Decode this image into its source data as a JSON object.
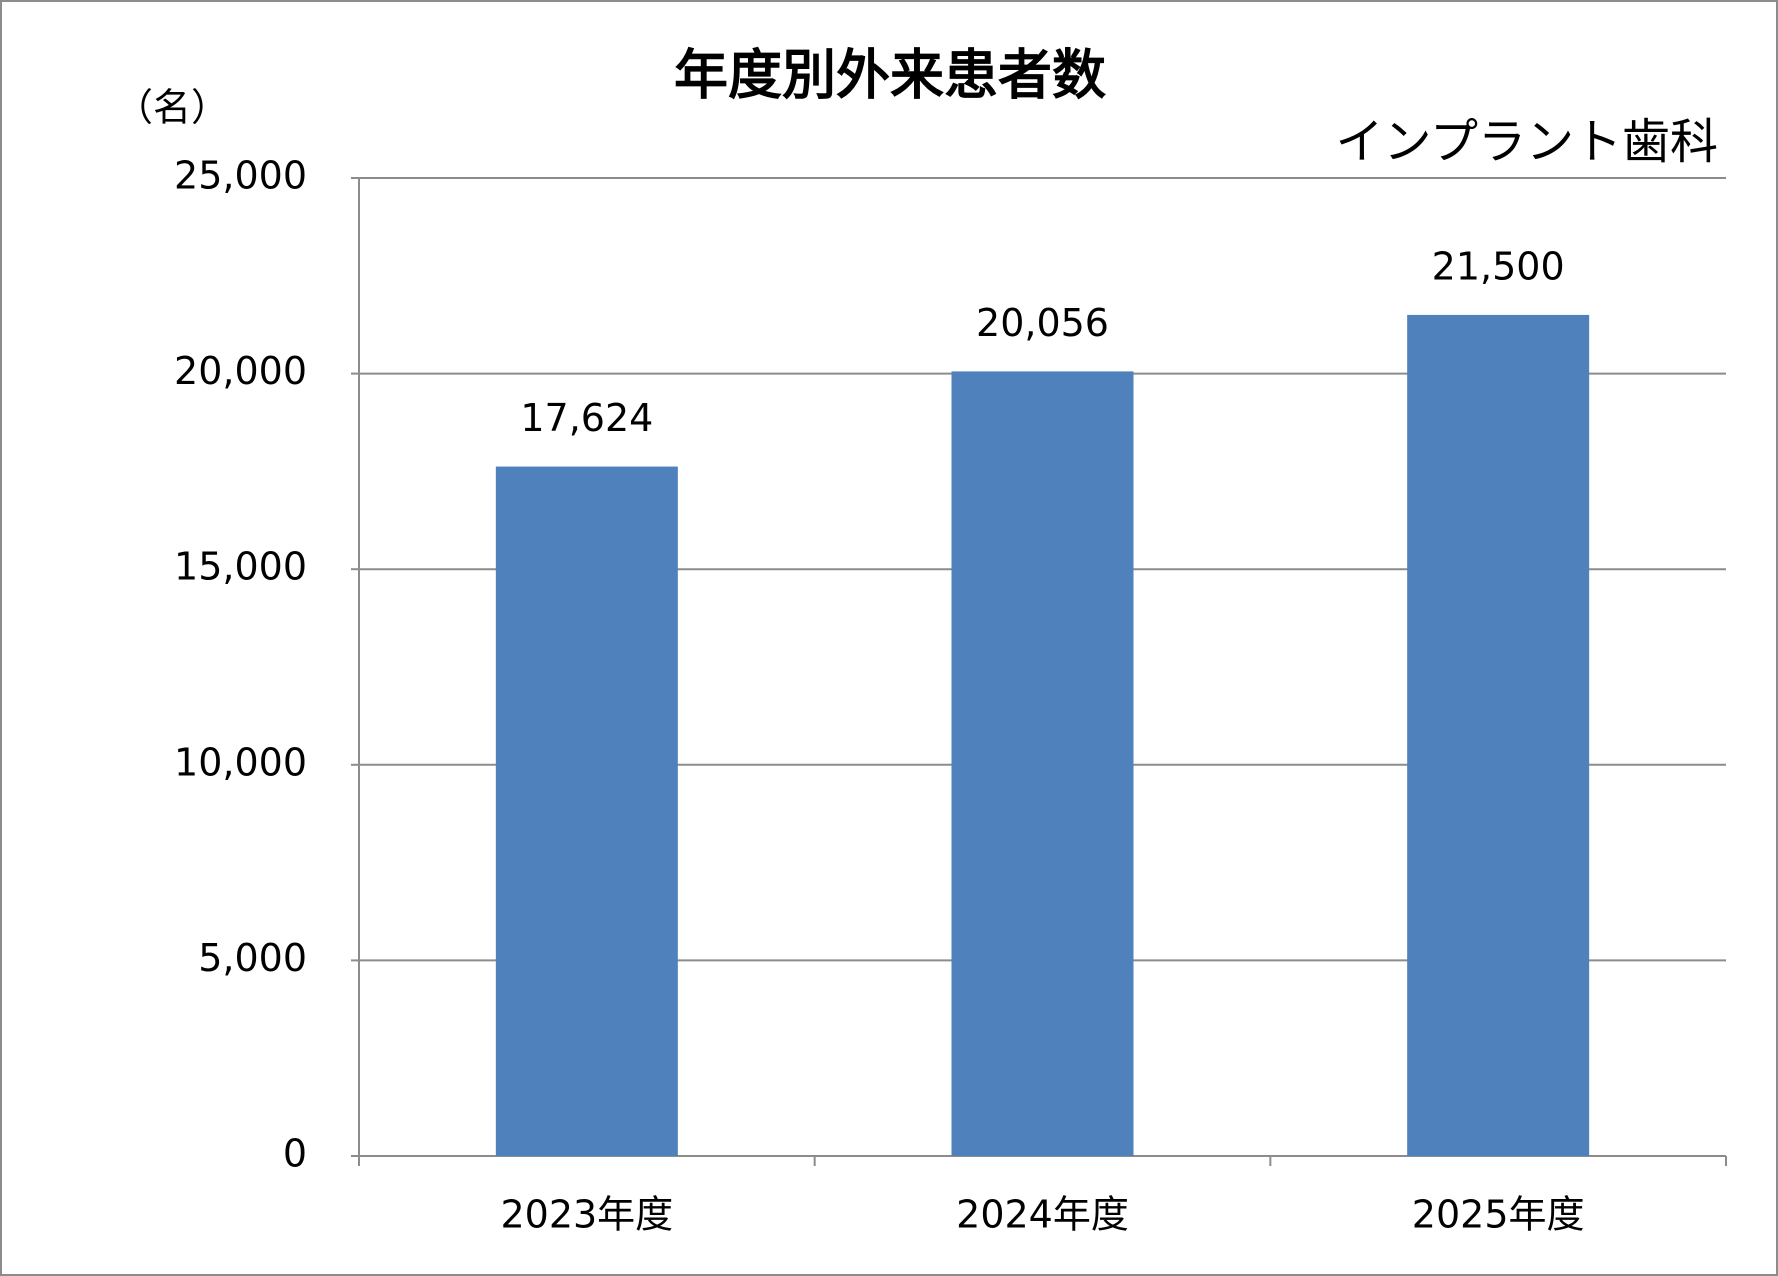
{
  "chart_data": {
    "type": "bar",
    "title": "年度別外来患者数",
    "subtitle": "インプラント歯科",
    "y_label": "（名）",
    "categories": [
      "2023年度",
      "2024年度",
      "2025年度"
    ],
    "values": [
      17624,
      20056,
      21500
    ],
    "value_labels": [
      "17,624",
      "20,056",
      "21,500"
    ],
    "color": "#4f81bd",
    "ylim": [
      0,
      25000
    ],
    "yticks": [
      0,
      {
        "value": 5000,
        "label": "5,000"
      },
      {
        "value": 10000,
        "label": "10,000"
      },
      {
        "value": 15000,
        "label": "15,000"
      },
      {
        "value": 20000,
        "label": "20,000"
      },
      {
        "value": 25000,
        "label": "25,000"
      }
    ],
    "grid": true
  }
}
